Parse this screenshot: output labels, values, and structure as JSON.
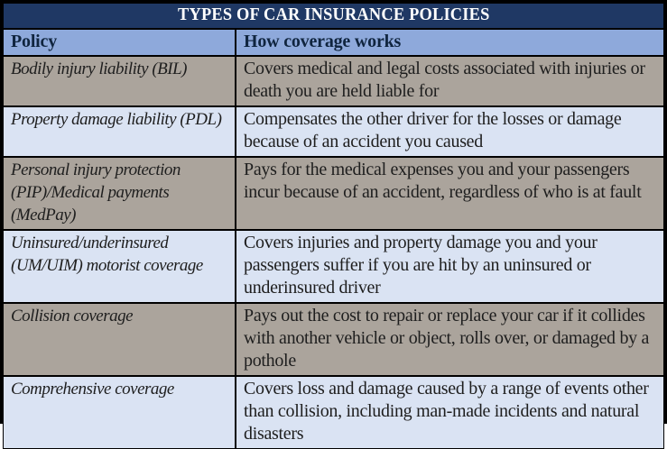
{
  "table": {
    "title": "TYPES OF CAR INSURANCE POLICIES",
    "columns": [
      "Policy",
      "How coverage works"
    ],
    "rows": [
      {
        "policy": "Bodily injury liability (BIL)",
        "coverage": "Covers medical and legal costs associated with injuries or death you are held liable for"
      },
      {
        "policy": "Property damage liability (PDL)",
        "coverage": "Compensates the other driver for the losses or damage because of an accident you caused"
      },
      {
        "policy": "Personal injury protection (PIP)/Medical payments (MedPay)",
        "coverage": "Pays for the medical expenses you and your passengers incur because of an accident, regardless of who is at fault"
      },
      {
        "policy": "Uninsured/underinsured (UM/UIM) motorist coverage",
        "coverage": "Covers injuries and property damage you and your passengers suffer if you are hit by an uninsured or underinsured driver"
      },
      {
        "policy": "Collision coverage",
        "coverage": "Pays out the cost to repair or replace your car if it collides with another vehicle or object, rolls over, or damaged by a pothole"
      },
      {
        "policy": "Comprehensive coverage",
        "coverage": "Covers loss and damage caused by a range of events other than collision, including man-made incidents and natural disasters"
      }
    ]
  },
  "colors": {
    "title_bg": "#1F3864",
    "title_text": "#FFFFFF",
    "header_bg": "#8EA9DB",
    "header_text": "#10253F",
    "row_gray": "#ABA49C",
    "row_blue": "#DAE3F3",
    "body_text": "#1E1E1E",
    "border": "#000000",
    "page_bg": "#FFFFFF"
  }
}
